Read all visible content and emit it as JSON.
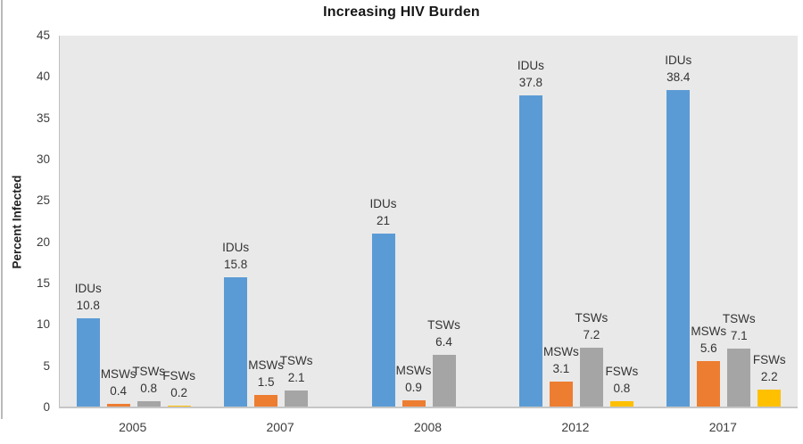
{
  "title": "Increasing HIV Burden",
  "ylabel": "Percent Infected",
  "chart_data": {
    "type": "bar",
    "title": "Increasing HIV Burden",
    "xlabel": "",
    "ylabel": "Percent Infected",
    "categories": [
      "2005",
      "2007",
      "2008",
      "2012",
      "2017"
    ],
    "series": [
      {
        "name": "IDUs",
        "color": "#5B9BD5",
        "values": [
          10.8,
          15.8,
          21,
          37.8,
          38.4
        ]
      },
      {
        "name": "MSWs",
        "color": "#ED7D31",
        "values": [
          0.4,
          1.5,
          0.9,
          3.1,
          5.6
        ]
      },
      {
        "name": "TSWs",
        "color": "#A5A5A5",
        "values": [
          0.8,
          2.1,
          6.4,
          7.2,
          7.1
        ]
      },
      {
        "name": "FSWs",
        "color": "#FFC000",
        "values": [
          0.2,
          null,
          null,
          0.8,
          2.2
        ]
      }
    ],
    "ylim": [
      0,
      45
    ],
    "yticks": [
      0,
      5,
      10,
      15,
      20,
      25,
      30,
      35,
      40,
      45
    ],
    "grid": false,
    "legend": "none",
    "data_labels": "series-name-above-value",
    "plot_background": "#E9E9E9",
    "axis_line_color": "#BFBFBF"
  }
}
